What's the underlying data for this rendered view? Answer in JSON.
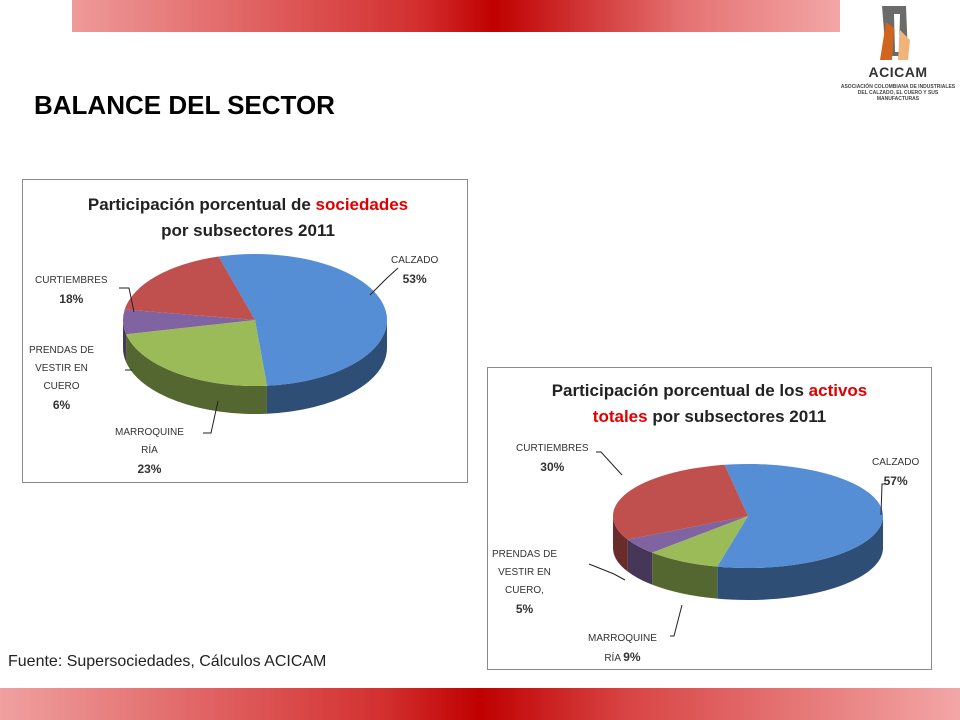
{
  "page": {
    "title": "BALANCE DEL SECTOR",
    "source": "Fuente: Supersociedades, Cálculos ACICAM",
    "logo": {
      "name": "ACICAM",
      "subtitle_line1": "ASOCIACIÓN COLOMBIANA DE INDUSTRIALES",
      "subtitle_line2": "DEL CALZADO, EL CUERO Y SUS MANUFACTURAS"
    }
  },
  "colors": {
    "calzado": "#558ed5",
    "marroquineria": "#9bbb59",
    "prendas": "#8064a2",
    "curtiembres": "#c0504d",
    "highlight": "#e00000",
    "band": "#c00000"
  },
  "chart_data": [
    {
      "type": "pie",
      "title_parts": [
        "Participación porcentual de ",
        "sociedades",
        " por subsectores 2011"
      ],
      "categories": [
        "CALZADO",
        "MARROQUINERÍA",
        "PRENDAS DE VESTIR EN CUERO",
        "CURTIEMBRES"
      ],
      "values": [
        53,
        23,
        6,
        18
      ],
      "labels": [
        {
          "lines": [
            "CALZADO"
          ],
          "value": "53%"
        },
        {
          "lines": [
            "MARROQUINE",
            "RÍA"
          ],
          "value": "23%"
        },
        {
          "lines": [
            "PRENDAS DE",
            "VESTIR EN",
            "CUERO"
          ],
          "value": "6%"
        },
        {
          "lines": [
            "CURTIEMBRES"
          ],
          "value": "18%"
        }
      ]
    },
    {
      "type": "pie",
      "title_parts": [
        "Participación porcentual de los ",
        "activos",
        " ",
        "totales",
        " por subsectores 2011"
      ],
      "categories": [
        "CALZADO",
        "MARROQUINERÍA",
        "PRENDAS DE VESTIR EN CUERO",
        "CURTIEMBRES"
      ],
      "values": [
        57,
        9,
        5,
        30
      ],
      "labels": [
        {
          "lines": [
            "CALZADO"
          ],
          "value": "57%"
        },
        {
          "lines": [
            "MARROQUINE"
          ],
          "tail": "RÍA",
          "value": "9%"
        },
        {
          "lines": [
            "PRENDAS DE",
            "VESTIR EN",
            "CUERO,"
          ],
          "value": "5%"
        },
        {
          "lines": [
            "CURTIEMBRES"
          ],
          "value": "30%"
        }
      ]
    }
  ]
}
